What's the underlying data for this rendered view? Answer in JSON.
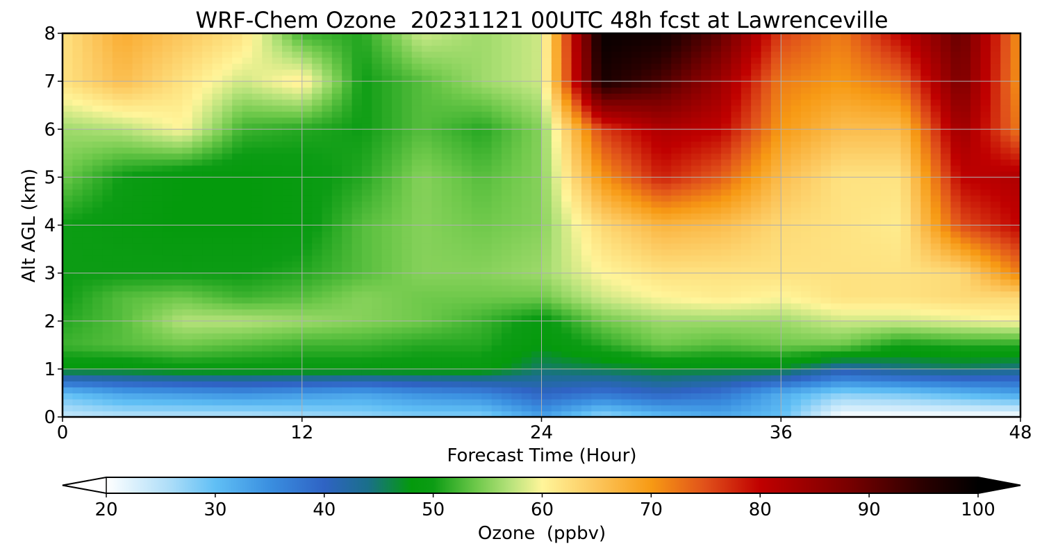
{
  "chart_data": {
    "type": "heatmap",
    "title": "WRF-Chem Ozone  20231121 00UTC 48h fcst at Lawrenceville",
    "xlabel": "Forecast Time (Hour)",
    "ylabel": "Alt AGL (km)",
    "x_range": [
      0,
      48
    ],
    "y_range": [
      0,
      8
    ],
    "x_ticks": [
      "0",
      "12",
      "24",
      "36",
      "48"
    ],
    "y_ticks": [
      "0",
      "1",
      "2",
      "3",
      "4",
      "5",
      "6",
      "7",
      "8"
    ],
    "grid": true,
    "x_hours": [
      0,
      3,
      6,
      9,
      12,
      15,
      18,
      21,
      24,
      27,
      30,
      33,
      36,
      39,
      42,
      45,
      48
    ],
    "y_km": [
      0,
      0.5,
      1,
      1.5,
      2,
      2.5,
      3,
      4,
      5,
      6,
      7,
      8
    ],
    "ozone_ppbv": [
      [
        24,
        25,
        25,
        25,
        26,
        27,
        28,
        28,
        33,
        27,
        30,
        32,
        30,
        20,
        20,
        20,
        20
      ],
      [
        30,
        33,
        34,
        35,
        34,
        33,
        35,
        36,
        40,
        38,
        40,
        38,
        32,
        28,
        29,
        31,
        33
      ],
      [
        48,
        48,
        49,
        49,
        49,
        49,
        49,
        49,
        45,
        46,
        47,
        47,
        47,
        42,
        44,
        45,
        44
      ],
      [
        52,
        53,
        54,
        53,
        52,
        52,
        51,
        51,
        48,
        51,
        54,
        53,
        54,
        54,
        50,
        51,
        51
      ],
      [
        51,
        53,
        57,
        57,
        56,
        55,
        54,
        52,
        49,
        54,
        56,
        56,
        56,
        58,
        58,
        59,
        60
      ],
      [
        50,
        53,
        54,
        52,
        53,
        55,
        54,
        54,
        54,
        58,
        60,
        61,
        60,
        62,
        62,
        63,
        63
      ],
      [
        50,
        50,
        50,
        50,
        51,
        53,
        55,
        55,
        56,
        60,
        62,
        62,
        62,
        62,
        62,
        63,
        72
      ],
      [
        50,
        49,
        48,
        48,
        49,
        53,
        55,
        54,
        55,
        63,
        67,
        66,
        63,
        62,
        61,
        75,
        80
      ],
      [
        54,
        50,
        48,
        48,
        49,
        51,
        55,
        53,
        55,
        70,
        78,
        74,
        66,
        62,
        62,
        80,
        82
      ],
      [
        56,
        57,
        60,
        52,
        51,
        50,
        53,
        51,
        55,
        76,
        82,
        80,
        70,
        66,
        66,
        84,
        72
      ],
      [
        62,
        66,
        62,
        58,
        61,
        50,
        53,
        56,
        58,
        97,
        92,
        84,
        72,
        70,
        73,
        88,
        70
      ],
      [
        62,
        68,
        65,
        62,
        52,
        51,
        58,
        56,
        58,
        99,
        98,
        90,
        76,
        72,
        80,
        90,
        70
      ]
    ],
    "colorbar": {
      "label": "Ozone  (ppbv)",
      "min": 20,
      "max": 100,
      "ticks": [
        "20",
        "30",
        "40",
        "50",
        "60",
        "70",
        "80",
        "90",
        "100"
      ],
      "extend": "both",
      "color_stops": [
        {
          "value": 20,
          "color": "#ffffff"
        },
        {
          "value": 26,
          "color": "#aadcf8"
        },
        {
          "value": 30,
          "color": "#60bff5"
        },
        {
          "value": 35,
          "color": "#3a8fe0"
        },
        {
          "value": 40,
          "color": "#2f63c4"
        },
        {
          "value": 44,
          "color": "#1a6f8a"
        },
        {
          "value": 48,
          "color": "#049a0c"
        },
        {
          "value": 50,
          "color": "#0c9c14"
        },
        {
          "value": 54,
          "color": "#6fc94b"
        },
        {
          "value": 57,
          "color": "#b5e27a"
        },
        {
          "value": 60,
          "color": "#fff59a"
        },
        {
          "value": 65,
          "color": "#fcc65c"
        },
        {
          "value": 70,
          "color": "#f79a14"
        },
        {
          "value": 75,
          "color": "#e0501a"
        },
        {
          "value": 80,
          "color": "#c00000"
        },
        {
          "value": 88,
          "color": "#7a0000"
        },
        {
          "value": 95,
          "color": "#2a0000"
        },
        {
          "value": 100,
          "color": "#000000"
        }
      ]
    }
  }
}
